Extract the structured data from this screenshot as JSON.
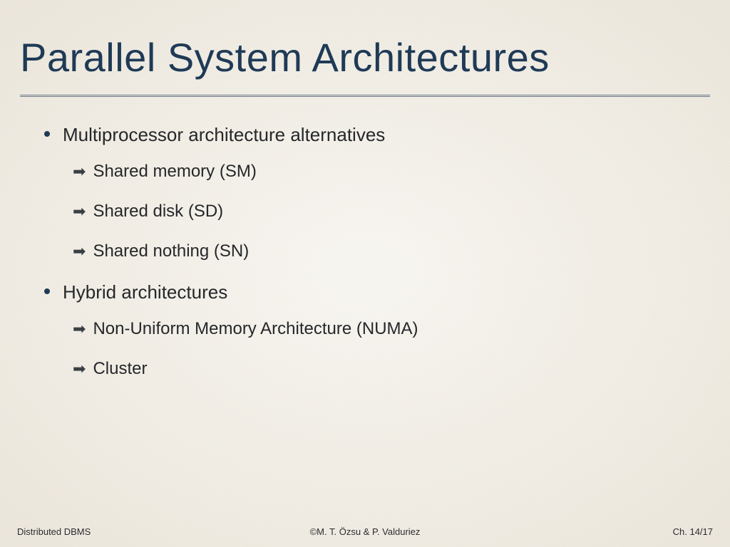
{
  "slide": {
    "title": "Parallel System Architectures",
    "title_color": "#1f3a56",
    "title_fontsize": 56,
    "background_color": "#f3f0e8",
    "rule_color": "#6a7a8a",
    "bullets": [
      {
        "text": "Multiprocessor architecture alternatives",
        "sub": [
          "Shared memory (SM)",
          "Shared disk (SD)",
          "Shared nothing (SN)"
        ]
      },
      {
        "text": "Hybrid architectures",
        "sub": [
          "Non-Uniform Memory Architecture (NUMA)",
          "Cluster"
        ]
      }
    ],
    "bullet_color": "#1f3a56",
    "body_fontsize": 26,
    "sub_fontsize": 24,
    "arrow_glyph": "➡",
    "footer": {
      "left": "Distributed DBMS",
      "center": "©M. T. Özsu & P. Valduriez",
      "right": "Ch. 14/17",
      "fontsize": 13,
      "color": "#2a2c2f"
    }
  }
}
